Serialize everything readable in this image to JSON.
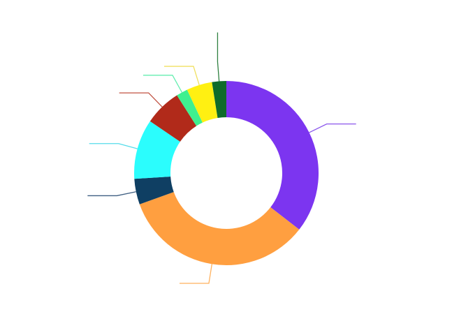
{
  "chart_data": {
    "type": "pie",
    "variant": "donut",
    "title": "",
    "legend": "none",
    "labels_visible": false,
    "slices": [
      {
        "value": 35.5,
        "color": "#7c35f0",
        "leader_color": "#8a55ec"
      },
      {
        "value": 34.0,
        "color": "#ff9f40",
        "leader_color": "#ffb15e"
      },
      {
        "value": 4.5,
        "color": "#0f3f63",
        "leader_color": "#3f5f82"
      },
      {
        "value": 10.5,
        "color": "#2bfdfd",
        "leader_color": "#55dcea"
      },
      {
        "value": 6.5,
        "color": "#b12a1a",
        "leader_color": "#c05040"
      },
      {
        "value": 2.0,
        "color": "#3ff08f",
        "leader_color": "#66eeb0"
      },
      {
        "value": 4.5,
        "color": "#fff012",
        "leader_color": "#f0e060"
      },
      {
        "value": 2.5,
        "color": "#0e6b2a",
        "leader_color": "#2f8040"
      }
    ]
  }
}
